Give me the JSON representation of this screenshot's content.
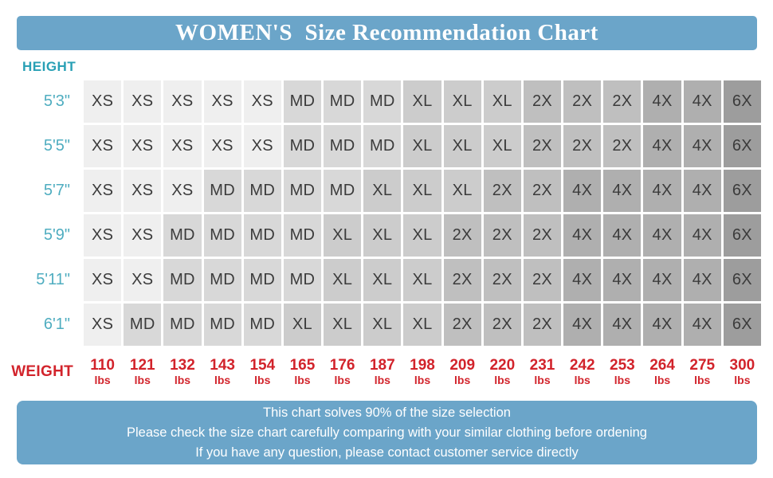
{
  "header": {
    "title": "WOMEN'S  Size Recommendation Chart"
  },
  "chart_data": {
    "type": "heatmap",
    "title": "WOMEN'S Size Recommendation Chart",
    "ylabel": "HEIGHT",
    "xlabel": "WEIGHT",
    "y_categories": [
      "5'3\"",
      "5'5\"",
      "5'7\"",
      "5'9\"",
      "5'11\"",
      "6'1\""
    ],
    "x_categories": [
      "110",
      "121",
      "132",
      "143",
      "154",
      "165",
      "176",
      "187",
      "198",
      "209",
      "220",
      "231",
      "242",
      "253",
      "264",
      "275",
      "300"
    ],
    "x_unit": "lbs",
    "rows": [
      [
        "XS",
        "XS",
        "XS",
        "XS",
        "XS",
        "MD",
        "MD",
        "MD",
        "XL",
        "XL",
        "XL",
        "2X",
        "2X",
        "2X",
        "4X",
        "4X",
        "6X"
      ],
      [
        "XS",
        "XS",
        "XS",
        "XS",
        "XS",
        "MD",
        "MD",
        "MD",
        "XL",
        "XL",
        "XL",
        "2X",
        "2X",
        "2X",
        "4X",
        "4X",
        "6X"
      ],
      [
        "XS",
        "XS",
        "XS",
        "MD",
        "MD",
        "MD",
        "MD",
        "XL",
        "XL",
        "XL",
        "2X",
        "2X",
        "4X",
        "4X",
        "4X",
        "4X",
        "6X"
      ],
      [
        "XS",
        "XS",
        "MD",
        "MD",
        "MD",
        "MD",
        "XL",
        "XL",
        "XL",
        "2X",
        "2X",
        "2X",
        "4X",
        "4X",
        "4X",
        "4X",
        "6X"
      ],
      [
        "XS",
        "XS",
        "MD",
        "MD",
        "MD",
        "MD",
        "XL",
        "XL",
        "XL",
        "2X",
        "2X",
        "2X",
        "4X",
        "4X",
        "4X",
        "4X",
        "6X"
      ],
      [
        "XS",
        "MD",
        "MD",
        "MD",
        "MD",
        "XL",
        "XL",
        "XL",
        "XL",
        "2X",
        "2X",
        "2X",
        "4X",
        "4X",
        "4X",
        "4X",
        "6X"
      ]
    ],
    "size_palette": {
      "XS": "#efefef",
      "MD": "#d8d8d8",
      "XL": "#cccccc",
      "2X": "#bfbfbf",
      "4X": "#afafaf",
      "6X": "#9d9d9d"
    },
    "legend_position": "none",
    "grid": false
  },
  "colors": {
    "banner_blue": "#6ba5c9",
    "teal": "#29a0b5",
    "teal_light": "#4fadc0",
    "red": "#d2232b",
    "cell_text": "#3b3b3b"
  },
  "footer": {
    "lines": [
      "This chart solves 90% of the size selection",
      "Please check the size chart carefully comparing with your similar clothing before ordening",
      "If you have any question, please contact customer service directly"
    ]
  }
}
